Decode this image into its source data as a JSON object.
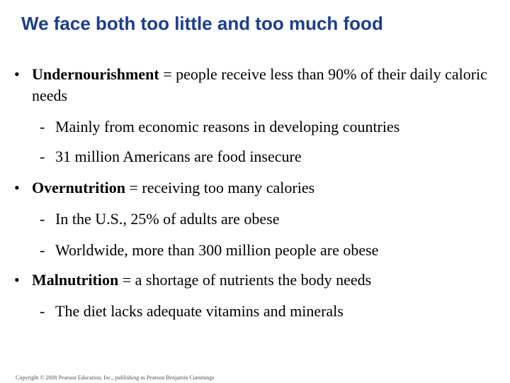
{
  "title": "We face both too little and too much food",
  "bullets": [
    {
      "term": "Undernourishment",
      "definition": " = people receive less than 90% of their daily caloric needs",
      "subs": [
        "Mainly from economic reasons in developing countries",
        "31 million Americans are food insecure"
      ]
    },
    {
      "term": "Overnutrition",
      "definition": " = receiving too many calories",
      "subs": [
        "In the U.S., 25% of adults are obese",
        "Worldwide, more than 300 million people are obese"
      ]
    },
    {
      "term": "Malnutrition",
      "definition": " = a shortage of nutrients the body needs",
      "subs": [
        "The diet lacks adequate vitamins and minerals"
      ]
    }
  ],
  "bullet_glyph": "•",
  "dash_glyph": "-",
  "copyright": "Copyright © 2008 Pearson Education, Inc., publishing as Pearson Benjamin Cummings",
  "colors": {
    "title": "#1c3e8c",
    "text": "#000000",
    "background": "#ffffff"
  }
}
